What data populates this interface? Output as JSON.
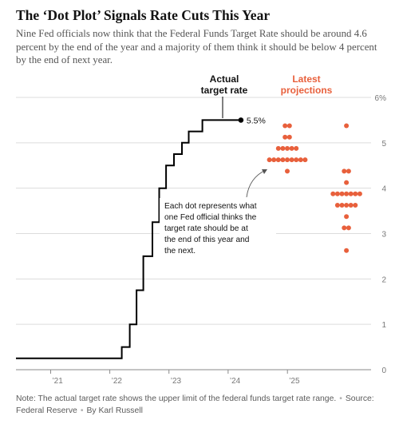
{
  "title": "The ‘Dot Plot’ Signals Rate Cuts This Year",
  "subtitle": "Nine Fed officials now think that the Federal Funds Target Rate should be around 4.6 percent by the end of the year and a majority of them think it should be below 4 percent by the end of next year.",
  "footer": {
    "note": "Note: The actual target rate shows the upper limit of the federal funds target rate range.",
    "source": "Source: Federal Reserve",
    "byline": "By Karl Russell"
  },
  "colors": {
    "actual": "#000000",
    "projection": "#e8603c",
    "grid": "#dcdcdc",
    "axis_text": "#777777"
  },
  "chart_data": {
    "type": "line",
    "x_ticks": [
      "’21",
      "’22",
      "’23",
      "’24",
      "’25"
    ],
    "y_ticks": [
      "0",
      "1",
      "2",
      "3",
      "4",
      "5",
      "6%"
    ],
    "ylim": [
      0,
      6
    ],
    "xlim": [
      "2020-06-01",
      "2026-06-01"
    ],
    "grid": "horizontal",
    "series": [
      {
        "name": "Actual target rate",
        "type": "step",
        "points": [
          {
            "x": "2020-06-01",
            "y": 0.25
          },
          {
            "x": "2022-03-16",
            "y": 0.5
          },
          {
            "x": "2022-05-04",
            "y": 1.0
          },
          {
            "x": "2022-06-15",
            "y": 1.75
          },
          {
            "x": "2022-07-27",
            "y": 2.5
          },
          {
            "x": "2022-09-21",
            "y": 3.25
          },
          {
            "x": "2022-11-02",
            "y": 4.0
          },
          {
            "x": "2022-12-14",
            "y": 4.5
          },
          {
            "x": "2023-02-01",
            "y": 4.75
          },
          {
            "x": "2023-03-22",
            "y": 5.0
          },
          {
            "x": "2023-05-03",
            "y": 5.25
          },
          {
            "x": "2023-07-26",
            "y": 5.5
          },
          {
            "x": "2024-03-20",
            "y": 5.5
          }
        ],
        "end_label": "5.5%"
      },
      {
        "name": "Latest projections",
        "type": "dot",
        "groups": [
          {
            "x": "2024-12-31",
            "dots": [
              {
                "y": 5.375,
                "n": 2
              },
              {
                "y": 5.125,
                "n": 2
              },
              {
                "y": 4.875,
                "n": 5
              },
              {
                "y": 4.625,
                "n": 9
              },
              {
                "y": 4.375,
                "n": 1
              }
            ]
          },
          {
            "x": "2025-12-31",
            "dots": [
              {
                "y": 5.375,
                "n": 1
              },
              {
                "y": 4.375,
                "n": 2
              },
              {
                "y": 4.125,
                "n": 1
              },
              {
                "y": 3.875,
                "n": 7
              },
              {
                "y": 3.625,
                "n": 5
              },
              {
                "y": 3.375,
                "n": 1
              },
              {
                "y": 3.125,
                "n": 2
              },
              {
                "y": 2.625,
                "n": 1
              }
            ]
          }
        ]
      }
    ],
    "labels": {
      "actual": [
        "Actual",
        "target rate"
      ],
      "projections": [
        "Latest",
        "projections"
      ]
    },
    "annotation": [
      "Each dot represents what",
      "one Fed official thinks the",
      "target rate should be at",
      "the end of this year and",
      "the next."
    ]
  }
}
